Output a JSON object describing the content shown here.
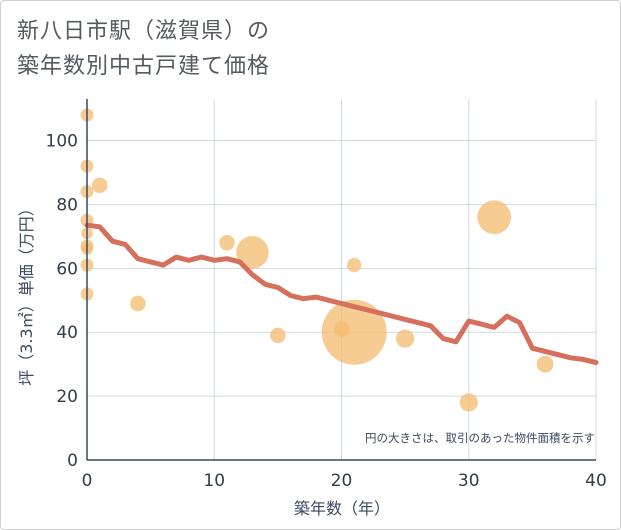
{
  "chart_data": {
    "type": "scatter",
    "title_line1": "新八日市駅（滋賀県）の",
    "title_line2": "築年数別中古戸建て価格",
    "xlabel": "築年数（年）",
    "ylabel": "坪（3.3㎡）単価（万円）",
    "note": "円の大きさは、取引のあった物件面積を示す",
    "xlim": [
      0,
      40
    ],
    "ylim": [
      0,
      113
    ],
    "xticks": [
      0,
      10,
      20,
      30,
      40
    ],
    "yticks": [
      0,
      20,
      40,
      60,
      80,
      100
    ],
    "xtick_labels": [
      "0",
      "10",
      "20",
      "30",
      "40"
    ],
    "ytick_labels": [
      "0",
      "20",
      "40",
      "60",
      "80",
      "100"
    ],
    "grid": true,
    "points": [
      {
        "x": 0,
        "y": 108,
        "size": 1
      },
      {
        "x": 0,
        "y": 92,
        "size": 1
      },
      {
        "x": 0,
        "y": 84,
        "size": 1
      },
      {
        "x": 1,
        "y": 86,
        "size": 1.2
      },
      {
        "x": 0,
        "y": 75,
        "size": 1
      },
      {
        "x": 0,
        "y": 71,
        "size": 0.9
      },
      {
        "x": 0,
        "y": 67,
        "size": 1
      },
      {
        "x": 0,
        "y": 66,
        "size": 0.9
      },
      {
        "x": 0,
        "y": 61,
        "size": 1
      },
      {
        "x": 0,
        "y": 52,
        "size": 1
      },
      {
        "x": 4,
        "y": 49,
        "size": 1.2
      },
      {
        "x": 11,
        "y": 68,
        "size": 1.2
      },
      {
        "x": 13,
        "y": 65,
        "size": 2.5
      },
      {
        "x": 15,
        "y": 39,
        "size": 1.2
      },
      {
        "x": 20,
        "y": 41,
        "size": 1.2
      },
      {
        "x": 21,
        "y": 40,
        "size": 5
      },
      {
        "x": 21,
        "y": 61,
        "size": 1.1
      },
      {
        "x": 25,
        "y": 38,
        "size": 1.4
      },
      {
        "x": 30,
        "y": 18,
        "size": 1.4
      },
      {
        "x": 32,
        "y": 76,
        "size": 2.6
      },
      {
        "x": 36,
        "y": 30,
        "size": 1.3
      }
    ],
    "trend_line": {
      "x": [
        0,
        1,
        2,
        3,
        4,
        5,
        6,
        7,
        8,
        9,
        10,
        11,
        12,
        13,
        14,
        15,
        16,
        17,
        18,
        19,
        20,
        21,
        22,
        23,
        24,
        25,
        26,
        27,
        28,
        29,
        30,
        31,
        32,
        33,
        34,
        35,
        36,
        37,
        38,
        39,
        40
      ],
      "y": [
        73.5,
        73,
        68.5,
        67.5,
        63,
        62,
        61,
        63.5,
        62.5,
        63.5,
        62.5,
        63,
        62,
        58,
        55,
        54,
        51.5,
        50.5,
        51,
        50,
        49,
        48,
        47,
        46,
        45,
        44,
        43,
        42,
        38,
        37,
        43.5,
        42.5,
        41.5,
        45,
        43,
        35,
        34,
        33,
        32,
        31.5,
        30.5
      ]
    },
    "colors": {
      "bubble": "#f3bb6d",
      "line": "#d4705c",
      "grid": "#cdd9e6",
      "axis": "#39485c"
    }
  }
}
